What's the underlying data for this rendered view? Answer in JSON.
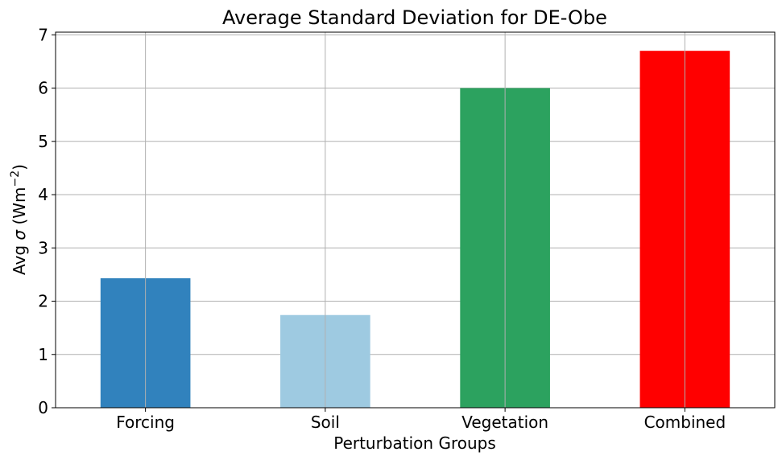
{
  "chart_data": {
    "type": "bar",
    "title": "Average Standard Deviation for DE-Obe",
    "xlabel": "Perturbation Groups",
    "ylabel_prefix": "Avg ",
    "ylabel_sigma": "σ",
    "ylabel_unit": " (Wm",
    "ylabel_exp": "−2",
    "ylabel_close": ")",
    "categories": [
      "Forcing",
      "Soil",
      "Vegetation",
      "Combined"
    ],
    "values": [
      2.43,
      1.74,
      6.0,
      6.7
    ],
    "colors": [
      "#3182bd",
      "#9ecae1",
      "#2ca25f",
      "#ff0000"
    ],
    "ylim": [
      0,
      7.05
    ],
    "yticks": [
      0,
      1,
      2,
      3,
      4,
      5,
      6,
      7
    ],
    "grid": true
  }
}
